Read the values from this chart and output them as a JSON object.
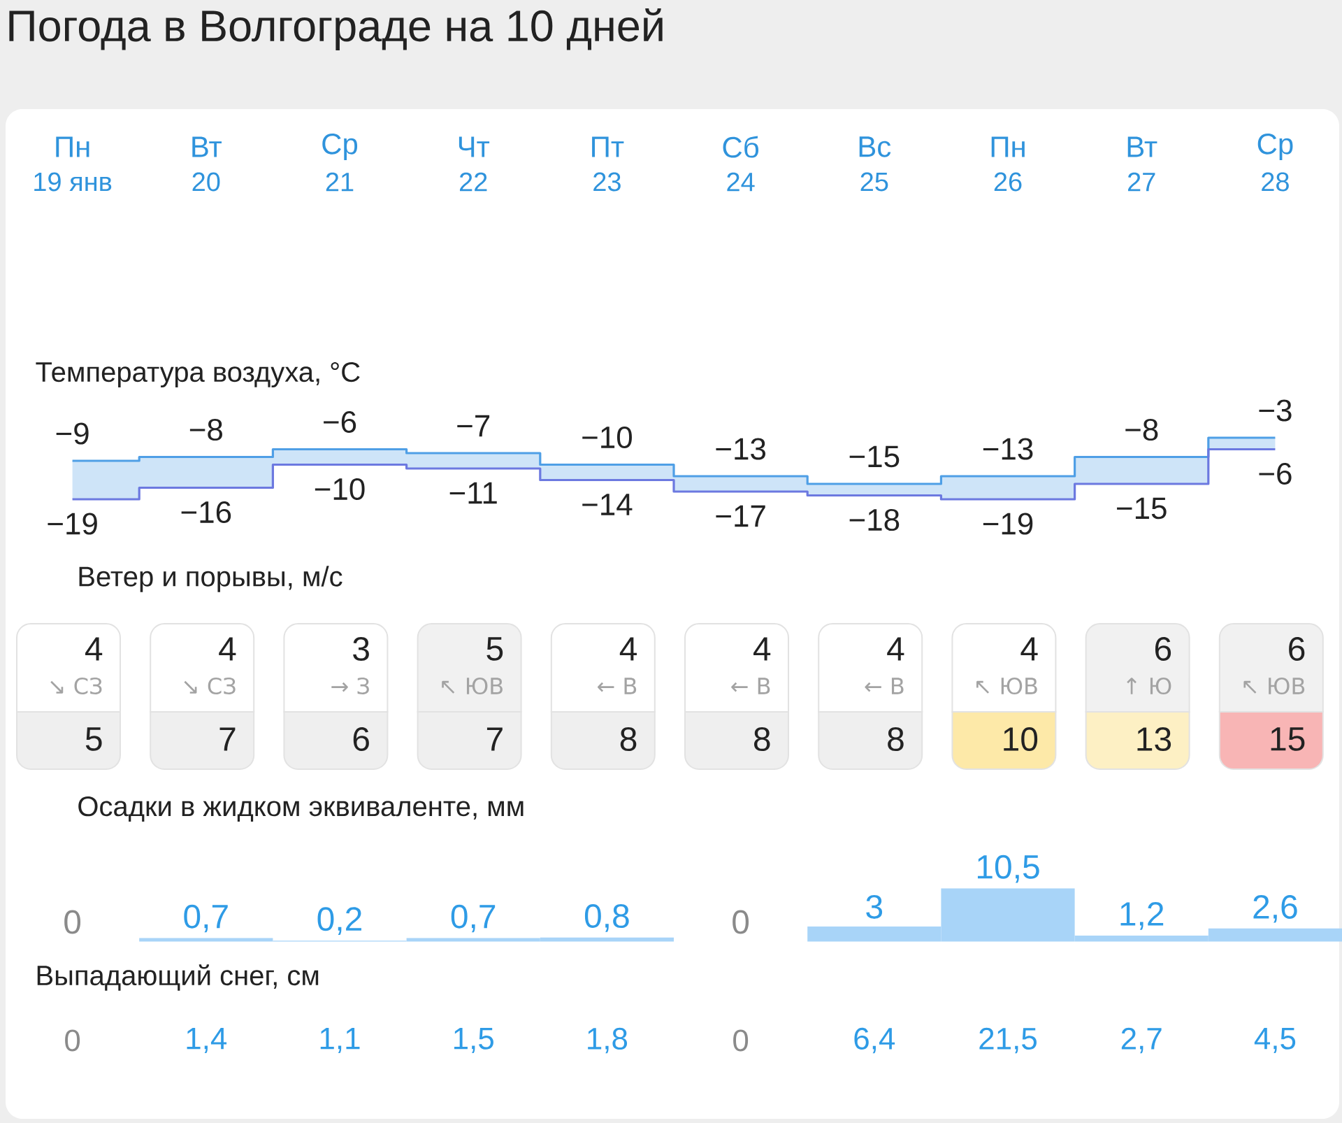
{
  "chart_data": [
    {
      "type": "step",
      "title": "Погода в Волгограде на 10 дней",
      "subtitle": "Температура воздуха, °C",
      "categories": [
        null,
        null,
        null,
        null,
        null,
        null,
        null,
        null,
        null,
        null
      ],
      "annotations": [
        "Пн",
        "Вт",
        "Ср",
        "Чт",
        "Пт",
        "Сб",
        "Вс",
        "Пн",
        "Вт",
        "Ср",
        "19 янв",
        "20",
        "21",
        "22",
        "23",
        "24",
        "25",
        "26",
        "27",
        "28"
      ],
      "series": [
        {
          "color": "#4f9fe6",
          "values": [
            -9,
            -8,
            -6,
            -7,
            -10,
            -13,
            -15,
            -13,
            -8,
            -3
          ],
          "value_labels": [
            "−9",
            "−8",
            "−6",
            "−7",
            "−10",
            "−13",
            "−15",
            "−13",
            "−8",
            "−3"
          ],
          "lower": [
            -19,
            -16,
            -10,
            -11,
            -14,
            -17,
            -18,
            -19,
            -15,
            -6
          ],
          "upper": [
            -9,
            -8,
            -6,
            -7,
            -10,
            -13,
            -15,
            -13,
            -8,
            -3
          ]
        },
        {
          "color": "#6c79e0",
          "values": [
            -19,
            -16,
            -10,
            -11,
            -14,
            -17,
            -18,
            -19,
            -15,
            -6
          ],
          "value_labels": [
            "−19",
            "−16",
            "−10",
            "−11",
            "−14",
            "−17",
            "−18",
            "−19",
            "−15",
            "−6"
          ]
        }
      ]
    },
    {
      "type": "other",
      "title": "Ветер и порывы, м/с",
      "values": [
        4,
        4,
        3,
        5,
        4,
        4,
        4,
        4,
        6,
        6
      ],
      "data_labels": true,
      "colors": [
        "#ffffff",
        "#ffffff",
        "#ffffff",
        "#f1f1f1",
        "#ffffff",
        "#ffffff",
        "#ffffff",
        "#ffffff",
        "#f1f1f1",
        "#f1f1f1"
      ],
      "annotations": [
        "↘ СЗ",
        "↘ СЗ",
        "→ З",
        "↖ ЮВ",
        "← В",
        "← В",
        "← В",
        "↖ ЮВ",
        "↑ Ю",
        "↖ ЮВ"
      ]
    },
    {
      "type": "other",
      "values": [
        5,
        7,
        6,
        7,
        8,
        8,
        8,
        10,
        13,
        15
      ],
      "data_labels": true,
      "colors": [
        "#efefef",
        "#efefef",
        "#efefef",
        "#efefef",
        "#efefef",
        "#efefef",
        "#efefef",
        "#fde9a8",
        "#fdf0c4",
        "#f8b5b5"
      ]
    },
    {
      "type": "bar",
      "title": "Осадки в жидком эквиваленте, мм",
      "categories": [
        null,
        null,
        null,
        null,
        null,
        null,
        null,
        null,
        null,
        null
      ],
      "values": [
        0,
        0.7,
        0.2,
        0.7,
        0.8,
        0,
        3,
        10.5,
        1.2,
        2.6
      ],
      "value_labels": [
        "0",
        "0,7",
        "0,2",
        "0,7",
        "0,8",
        "0",
        "3",
        "10,5",
        "1,2",
        "2,6"
      ],
      "color": "#a8d4f8"
    },
    {
      "type": "other",
      "title": "Выпадающий снег, см",
      "values": [
        0,
        1.4,
        1.1,
        1.5,
        1.8,
        0,
        6.4,
        21.5,
        2.7,
        4.5
      ],
      "value_labels": [
        "0",
        "1,4",
        "1,1",
        "1,5",
        "1,8",
        "0",
        "6,4",
        "21,5",
        "2,7",
        "4,5"
      ]
    }
  ]
}
